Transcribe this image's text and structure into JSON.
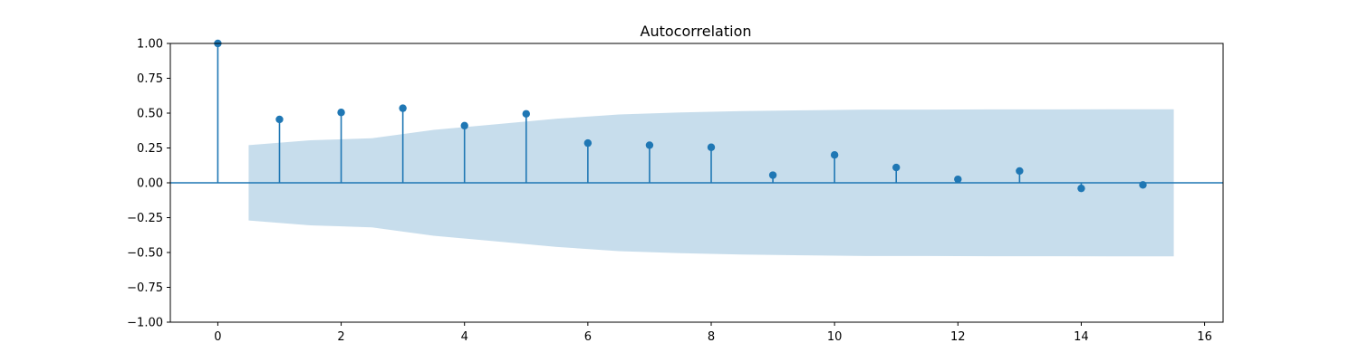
{
  "chart_data": {
    "type": "stem",
    "title": "Autocorrelation",
    "xlabel": "",
    "ylabel": "",
    "xlim": [
      -0.77,
      16.3
    ],
    "ylim": [
      -1.0,
      1.0
    ],
    "x_ticks": [
      0,
      2,
      4,
      6,
      8,
      10,
      12,
      14,
      16
    ],
    "y_ticks": [
      -1.0,
      -0.75,
      -0.5,
      -0.25,
      0.0,
      0.25,
      0.5,
      0.75,
      1.0
    ],
    "x_tick_labels": [
      "0",
      "2",
      "4",
      "6",
      "8",
      "10",
      "12",
      "14",
      "16"
    ],
    "y_tick_labels": [
      "−1.00",
      "−0.75",
      "−0.50",
      "−0.25",
      "0.00",
      "0.25",
      "0.50",
      "0.75",
      "1.00"
    ],
    "grid": false,
    "lags": [
      0,
      1,
      2,
      3,
      4,
      5,
      6,
      7,
      8,
      9,
      10,
      11,
      12,
      13,
      14,
      15
    ],
    "values": [
      1.0,
      0.455,
      0.505,
      0.535,
      0.41,
      0.495,
      0.285,
      0.27,
      0.255,
      0.055,
      0.2,
      0.11,
      0.025,
      0.085,
      -0.04,
      -0.015
    ],
    "confidence_band": {
      "x": [
        0.5,
        1.5,
        2.5,
        3.5,
        4.5,
        5.5,
        6.5,
        7.5,
        8.5,
        9.5,
        10.5,
        11.5,
        12.5,
        13.5,
        14.5,
        15.5
      ],
      "upper": [
        0.27,
        0.305,
        0.32,
        0.38,
        0.42,
        0.46,
        0.49,
        0.505,
        0.515,
        0.52,
        0.525,
        0.525,
        0.527,
        0.527,
        0.528,
        0.528
      ]
    },
    "colors": {
      "stem": "#1f77b4",
      "band": "#1f77b4",
      "band_opacity": 0.25
    }
  }
}
